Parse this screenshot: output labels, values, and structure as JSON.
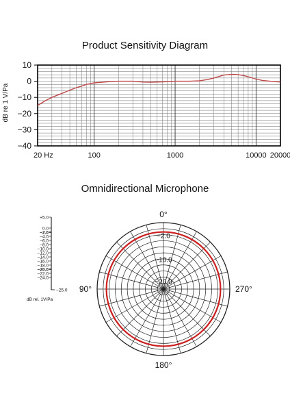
{
  "chart_data": [
    {
      "type": "line",
      "title": "Product Sensitivity Diagram",
      "xlabel": "",
      "ylabel": "dB re 1 V/Pa",
      "xscale": "log",
      "xlim": [
        20,
        20000
      ],
      "ylim": [
        -40,
        10
      ],
      "xtick_labels": [
        "20 Hz",
        "100",
        "1000",
        "10000",
        "20000"
      ],
      "ytick_labels": [
        "10",
        "0",
        "−10",
        "−20",
        "−30",
        "−40"
      ],
      "grid": true,
      "series": [
        {
          "color": "#c0484a",
          "x": [
            20,
            25,
            30,
            40,
            50,
            60,
            70,
            80,
            100,
            150,
            200,
            300,
            400,
            500,
            700,
            1000,
            1500,
            2000,
            2500,
            3000,
            4000,
            5000,
            6000,
            7000,
            8000,
            10000,
            12000,
            15000,
            20000
          ],
          "y": [
            -15,
            -12,
            -10,
            -7.5,
            -5.5,
            -4,
            -3,
            -2,
            -1,
            -0.3,
            0,
            0,
            -0.5,
            -0.6,
            -0.4,
            0,
            0,
            0.3,
            1,
            2,
            3.8,
            4.3,
            4.1,
            3.5,
            2.8,
            1.3,
            0.5,
            0,
            -0.5
          ]
        }
      ]
    },
    {
      "type": "polar",
      "title": "Omnidirectional Microphone",
      "angle_labels": [
        "0°",
        "90°",
        "180°",
        "270°"
      ],
      "ring_labels": [
        "−2.0",
        "−10.0",
        "−20.0"
      ],
      "scale_labels": [
        "+5.0",
        "0.0",
        "−2.0",
        "−4.0",
        "−6.0",
        "−8.0",
        "−10.0",
        "−12.0",
        "−14.0",
        "−16.0",
        "−18.0",
        "−20.0",
        "−22.0",
        "−24.0",
        "−25.0"
      ],
      "scale_unit": "dB rel. 1V/Pa",
      "pattern": "omnidirectional",
      "series": [
        {
          "color": "#cc1f1f",
          "level_db": -2.0
        }
      ]
    }
  ]
}
